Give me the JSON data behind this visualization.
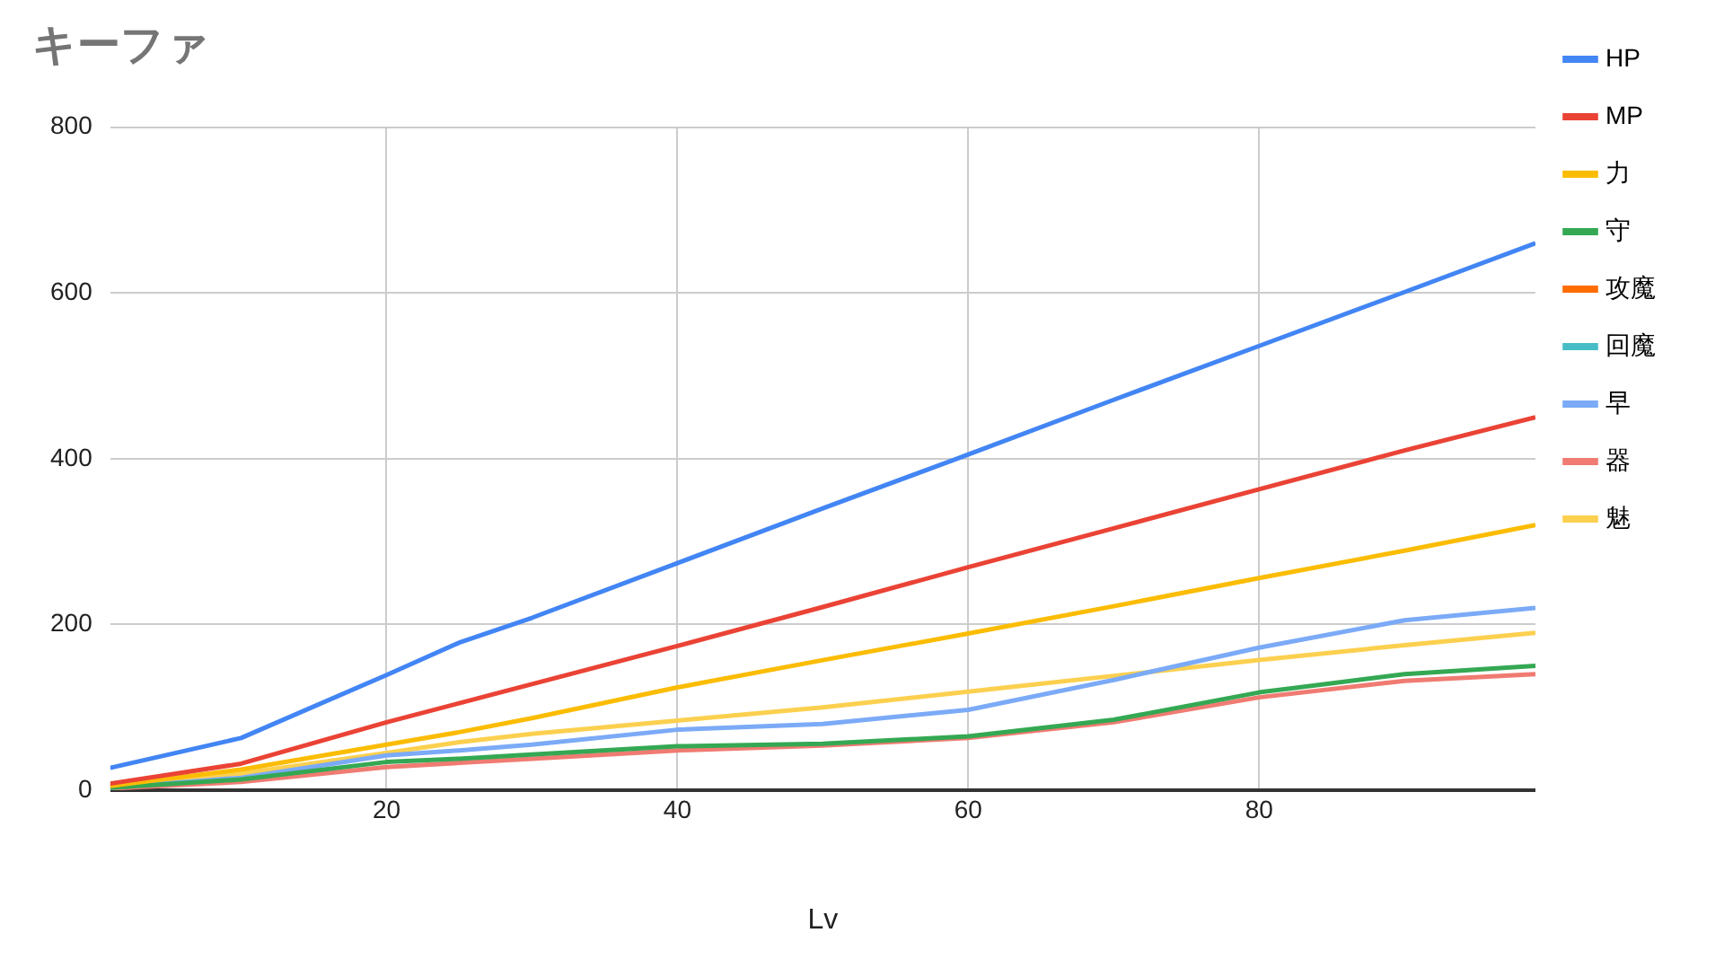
{
  "chart_data": {
    "type": "line",
    "title": "キーファ",
    "xlabel": "Lv",
    "x": [
      1,
      10,
      20,
      25,
      30,
      40,
      50,
      60,
      70,
      80,
      90,
      99
    ],
    "xlim": [
      1,
      99
    ],
    "xticks": [
      20,
      40,
      60,
      80
    ],
    "ylim": [
      0,
      800
    ],
    "yticks": [
      0,
      200,
      400,
      600,
      800
    ],
    "grid": true,
    "legend": "right",
    "marker": "none",
    "line_style": "solid",
    "series": [
      {
        "name": "HP",
        "color": "#4285f4",
        "values": [
          27,
          63,
          139,
          178,
          208,
          274,
          340,
          405,
          471,
          536,
          601,
          660
        ]
      },
      {
        "name": "MP",
        "color": "#ea4335",
        "values": [
          8,
          32,
          82,
          105,
          128,
          174,
          221,
          269,
          316,
          363,
          410,
          450
        ]
      },
      {
        "name": "力",
        "color": "#fbbc04",
        "values": [
          5,
          25,
          55,
          70,
          87,
          124,
          157,
          189,
          222,
          256,
          289,
          320
        ]
      },
      {
        "name": "守",
        "color": "#34a853",
        "values": [
          3,
          13,
          34,
          38,
          43,
          53,
          56,
          65,
          85,
          118,
          140,
          150
        ]
      },
      {
        "name": "攻魔",
        "color": "#ff6d01",
        "values": [
          null,
          null,
          null,
          null,
          null,
          null,
          null,
          null,
          null,
          null,
          null,
          null
        ]
      },
      {
        "name": "回魔",
        "color": "#46bdc6",
        "values": [
          null,
          null,
          null,
          null,
          null,
          null,
          null,
          null,
          null,
          null,
          null,
          null
        ]
      },
      {
        "name": "早",
        "color": "#7baaf7",
        "values": [
          3,
          15,
          42,
          48,
          55,
          73,
          80,
          97,
          133,
          172,
          205,
          220
        ]
      },
      {
        "name": "器",
        "color": "#f07b72",
        "values": [
          2,
          10,
          28,
          33,
          38,
          48,
          54,
          63,
          82,
          112,
          132,
          140
        ]
      },
      {
        "name": "魅",
        "color": "#fcd04f",
        "values": [
          6,
          20,
          45,
          58,
          68,
          84,
          100,
          119,
          138,
          157,
          175,
          190
        ]
      }
    ]
  }
}
